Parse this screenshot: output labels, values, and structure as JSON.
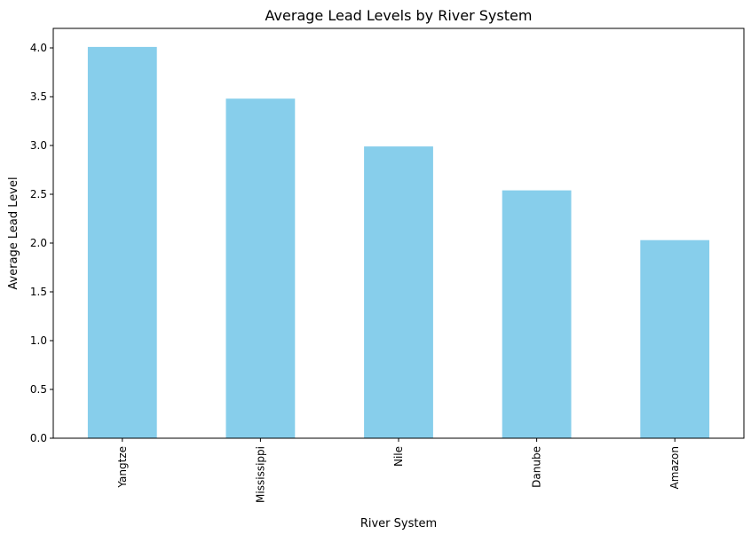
{
  "chart_data": {
    "type": "bar",
    "title": "Average Lead Levels by River System",
    "xlabel": "River System",
    "ylabel": "Average Lead Level",
    "categories": [
      "Yangtze",
      "Mississippi",
      "Nile",
      "Danube",
      "Amazon"
    ],
    "values": [
      4.01,
      3.48,
      2.99,
      2.54,
      2.03
    ],
    "ylim": [
      0,
      4.2
    ],
    "yticks": [
      "0.0",
      "0.5",
      "1.0",
      "1.5",
      "2.0",
      "2.5",
      "3.0",
      "3.5",
      "4.0"
    ],
    "bar_color": "#87ceeb",
    "grid": false,
    "legend": "none"
  }
}
